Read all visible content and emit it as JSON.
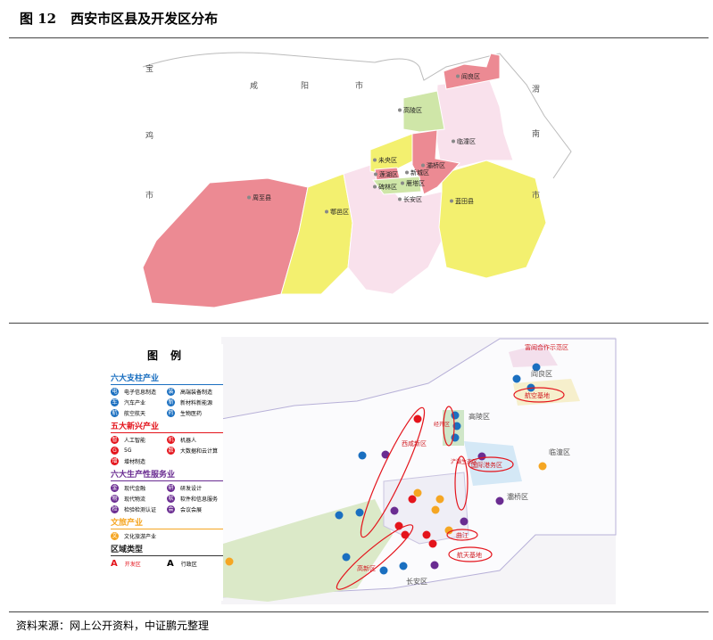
{
  "figure": {
    "number": "图 12",
    "title": "西安市区县及开发区分布"
  },
  "top_map": {
    "neighbors": [
      {
        "chars": [
          "宝",
          "鸡",
          "市"
        ]
      },
      {
        "chars": [
          "咸",
          "阳",
          "市"
        ]
      },
      {
        "chars": [
          "渭",
          "南",
          "市"
        ]
      }
    ],
    "districts": [
      "阎良区",
      "高陵区",
      "临潼区",
      "未央区",
      "灞桥区",
      "莲湖区",
      "新城区",
      "碑林区",
      "雁塔区",
      "长安区",
      "蓝田县",
      "鄠邑区",
      "周至县"
    ],
    "colors": {
      "red": "#ec8a93",
      "yellow": "#f3f06f",
      "pink": "#f9e1ec",
      "green": "#cfe6a8"
    }
  },
  "bottom_map": {
    "annotations": [
      "富阎合作示范区",
      "航空基地",
      "经开区",
      "国际港务区",
      "浐灞生态区",
      "西咸新区",
      "高新区",
      "曲江",
      "航天基地"
    ],
    "admin_labels": [
      "阎良区",
      "高陵区",
      "临潼区",
      "灞桥区",
      "长安区"
    ]
  },
  "legend": {
    "title": "图例",
    "sections": [
      {
        "name": "六大支柱产业",
        "color": "#1a6fc0",
        "items": [
          {
            "badge": "电",
            "label": "电子信息制造"
          },
          {
            "badge": "装",
            "label": "高端装备制造"
          },
          {
            "badge": "车",
            "label": "汽车产业"
          },
          {
            "badge": "新",
            "label": "新材料新能源"
          },
          {
            "badge": "航",
            "label": "航空航天"
          },
          {
            "badge": "药",
            "label": "生物医药"
          }
        ]
      },
      {
        "name": "五大新兴产业",
        "color": "#e4141c",
        "items": [
          {
            "badge": "智",
            "label": "人工智能"
          },
          {
            "badge": "机",
            "label": "机器人"
          },
          {
            "badge": "G",
            "label": "5G"
          },
          {
            "badge": "数",
            "label": "大数据和云计算"
          },
          {
            "badge": "增",
            "label": "增材制造"
          }
        ]
      },
      {
        "name": "六大生产性服务业",
        "color": "#6a2c91",
        "items": [
          {
            "badge": "金",
            "label": "现代金融"
          },
          {
            "badge": "研",
            "label": "研发设计"
          },
          {
            "badge": "物",
            "label": "现代物流"
          },
          {
            "badge": "软",
            "label": "软件和信息服务"
          },
          {
            "badge": "检",
            "label": "检验检测认证"
          },
          {
            "badge": "会",
            "label": "会议会展"
          }
        ]
      },
      {
        "name": "文旅产业",
        "color": "#f5a623",
        "items": [
          {
            "badge": "文",
            "label": "文化旅游产业"
          }
        ]
      }
    ],
    "region_types": {
      "name": "区域类型",
      "items": [
        {
          "glyph": "A",
          "label": "开发区",
          "color": "#e4141c"
        },
        {
          "glyph": "A",
          "label": "行政区",
          "color": "#222222"
        }
      ]
    }
  },
  "source": "资料来源：网上公开资料，中证鹏元整理"
}
